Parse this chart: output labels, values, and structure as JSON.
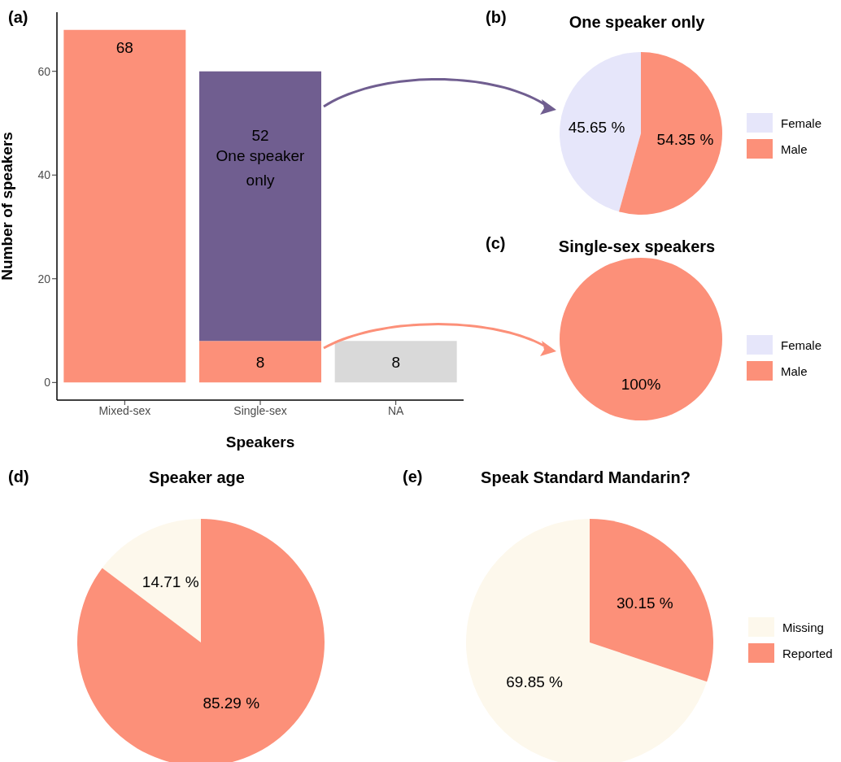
{
  "chart_data": [
    {
      "type": "bar",
      "annotations": [
        "(a)"
      ],
      "xlabel": "Speakers",
      "ylabel": "Number of speakers",
      "categories": [
        "Mixed-sex",
        "Single-sex",
        "NA"
      ],
      "stacked": true,
      "series": [
        {
          "color": "#fc9079",
          "values": [
            68,
            8,
            null
          ]
        },
        {
          "name": "One speaker only",
          "color": "#705e90",
          "values": [
            null,
            52,
            null
          ]
        },
        {
          "color": "#d9d9d9",
          "values": [
            null,
            null,
            8
          ]
        }
      ],
      "ylim": [
        -3.4,
        71.4
      ],
      "yticks": [
        0,
        20,
        40,
        60
      ],
      "data_labels": true
    },
    {
      "type": "pie",
      "title": "One speaker only",
      "annotations": [
        "(b)"
      ],
      "categories": [
        "Female",
        "Male"
      ],
      "values": [
        45.65,
        54.35
      ],
      "colors": [
        "#e6e6fa",
        "#fc9079"
      ],
      "value_labels": [
        "45.65 %",
        "54.35 %"
      ],
      "legend": "right"
    },
    {
      "type": "pie",
      "title": "Single-sex speakers",
      "annotations": [
        "(c)"
      ],
      "categories": [
        "Female",
        "Male"
      ],
      "values": [
        0,
        100
      ],
      "colors": [
        "#e6e6fa",
        "#fc9079"
      ],
      "value_labels": [
        null,
        "100%"
      ],
      "legend": "right"
    },
    {
      "type": "pie",
      "title": "Speaker age",
      "annotations": [
        "(d)"
      ],
      "categories": [
        null,
        null
      ],
      "values": [
        14.71,
        85.29
      ],
      "colors": [
        "#fdf8ec",
        "#fc9079"
      ],
      "value_labels": [
        "14.71 %",
        "85.29 %"
      ],
      "legend": false
    },
    {
      "type": "pie",
      "title": "Speak Standard Mandarin?",
      "annotations": [
        "(e)"
      ],
      "categories": [
        "Missing",
        "Reported"
      ],
      "values": [
        69.85,
        30.15
      ],
      "colors": [
        "#fdf8ec",
        "#fc9079"
      ],
      "value_labels": [
        "69.85 %",
        "30.15 %"
      ],
      "legend": "right"
    }
  ]
}
